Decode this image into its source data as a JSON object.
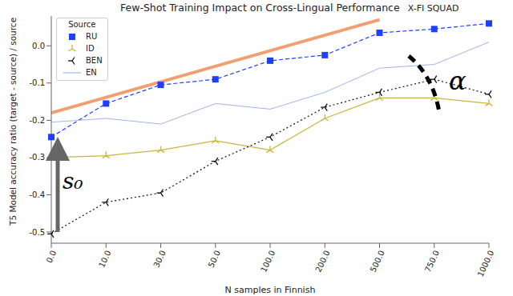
{
  "chart_data": {
    "type": "line",
    "title": "Few-Shot Training Impact on Cross-Lingual Performance",
    "subtitle": "X-FI  SQUAD",
    "x_label": "N samples in Finnish",
    "y_label": "T5 Model accuracy ratio (target - source) / source",
    "legend_title": "Source",
    "categories": [
      "0.0",
      "10.0",
      "30.0",
      "50.0",
      "100.0",
      "200.0",
      "500.0",
      "750.0",
      "1000.0"
    ],
    "series": [
      {
        "name": "RU",
        "color": "#1f3fff",
        "marker": "square",
        "line_style": "dashed",
        "values": [
          -0.245,
          -0.155,
          -0.105,
          -0.09,
          -0.04,
          -0.025,
          0.035,
          0.045,
          0.06
        ]
      },
      {
        "name": "ID",
        "color": "#c9b53e",
        "marker": "tri_up",
        "line_style": "solid",
        "values": [
          -0.3,
          -0.295,
          -0.28,
          -0.255,
          -0.28,
          -0.195,
          -0.14,
          -0.14,
          -0.155
        ]
      },
      {
        "name": "BEN",
        "color": "#111111",
        "marker": "tri_left",
        "line_style": "dotted",
        "values": [
          -0.505,
          -0.42,
          -0.395,
          -0.31,
          -0.245,
          -0.165,
          -0.125,
          -0.09,
          -0.13
        ]
      },
      {
        "name": "EN",
        "color": "#9fb6ea",
        "marker": "none",
        "line_style": "solid",
        "values": [
          -0.205,
          -0.195,
          -0.21,
          -0.155,
          -0.17,
          -0.125,
          -0.06,
          -0.05,
          0.01
        ]
      }
    ],
    "trend_line": {
      "color": "#f0a070",
      "x": [
        "0.0",
        "500.0"
      ],
      "values": [
        -0.18,
        0.07
      ]
    },
    "annotations": [
      "s₀",
      "α"
    ],
    "ylim": [
      -0.53,
      0.08
    ],
    "yticks": [
      -0.5,
      -0.4,
      -0.3,
      -0.2,
      -0.1,
      {
        "value": 0,
        "label": "0.0"
      }
    ],
    "grid": false,
    "legend": "upper left"
  }
}
